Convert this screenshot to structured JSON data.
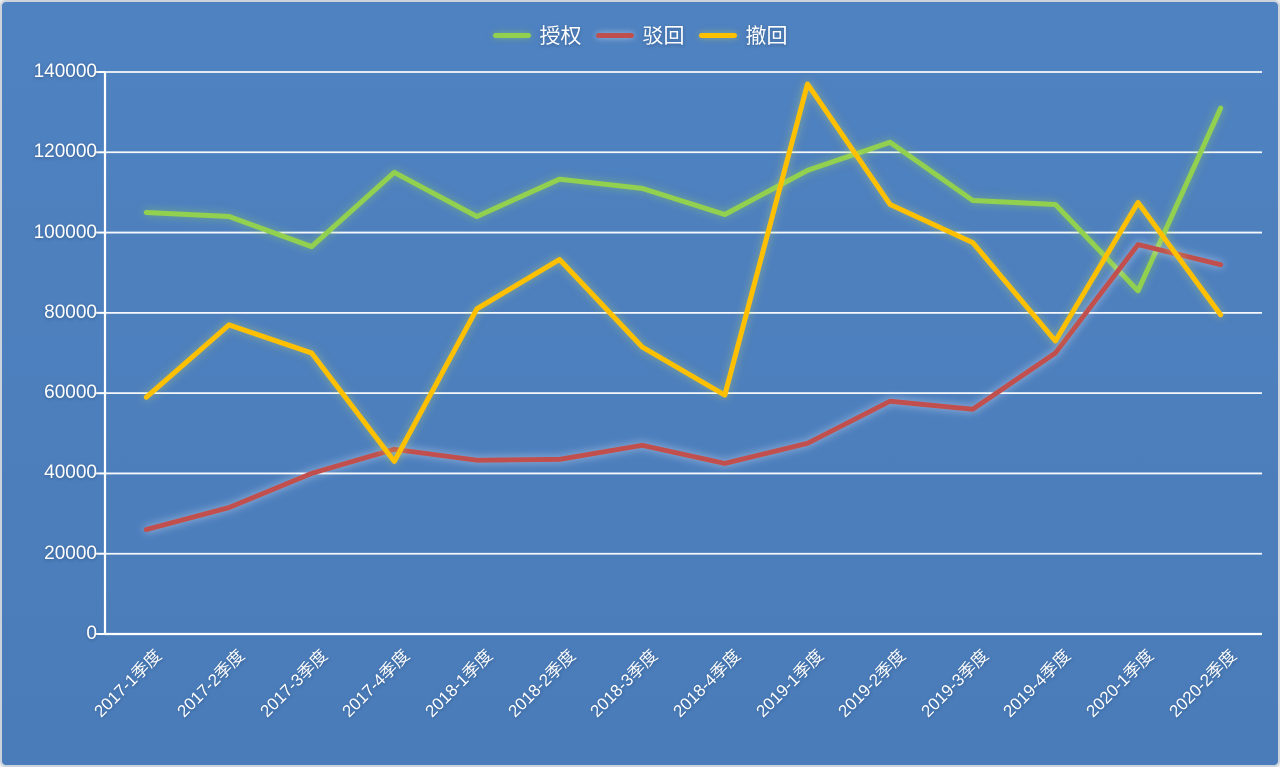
{
  "window": {
    "background_color": "#4d7fbd",
    "frame_border_color": "#cdd3dc",
    "gridline_color": "#ffffff",
    "text_color": "#ffffff"
  },
  "legend": {
    "position": "top-center",
    "items": [
      {
        "label": "授权",
        "color": "#92d050"
      },
      {
        "label": "驳回",
        "color": "#c0504d"
      },
      {
        "label": "撤回",
        "color": "#ffc000"
      }
    ]
  },
  "axes": {
    "ytick_labels": [
      "0",
      "20000",
      "40000",
      "60000",
      "80000",
      "100000",
      "120000",
      "140000"
    ]
  },
  "chart_data": {
    "type": "line",
    "title": "",
    "xlabel": "",
    "ylabel": "",
    "ylim": [
      0,
      140000
    ],
    "ytick_step": 20000,
    "grid": "horizontal white gridlines on blue background",
    "legend_position": "top-center",
    "categories": [
      "2017-1季度",
      "2017-2季度",
      "2017-3季度",
      "2017-4季度",
      "2018-1季度",
      "2018-2季度",
      "2018-3季度",
      "2018-4季度",
      "2019-1季度",
      "2019-2季度",
      "2019-3季度",
      "2019-4季度",
      "2020-1季度",
      "2020-2季度"
    ],
    "series": [
      {
        "name": "授权",
        "color": "#92d050",
        "glow_color": "rgba(150,210,85,0.55)",
        "values": [
          105000,
          104000,
          96500,
          115000,
          104000,
          113300,
          111000,
          104500,
          115500,
          122500,
          108000,
          107000,
          85500,
          131000
        ]
      },
      {
        "name": "驳回",
        "color": "#c0504d",
        "glow_color": "rgba(222,233,246,0.60)",
        "values": [
          26000,
          31500,
          40000,
          46000,
          43300,
          43500,
          47000,
          42500,
          47500,
          58000,
          56000,
          70000,
          97000,
          92000
        ]
      },
      {
        "name": "撤回",
        "color": "#ffc000",
        "glow_color": "rgba(205,222,90,0.50)",
        "values": [
          59000,
          77000,
          70000,
          43000,
          81000,
          93300,
          71500,
          59500,
          137000,
          107000,
          97500,
          73000,
          107500,
          79500
        ]
      }
    ]
  }
}
